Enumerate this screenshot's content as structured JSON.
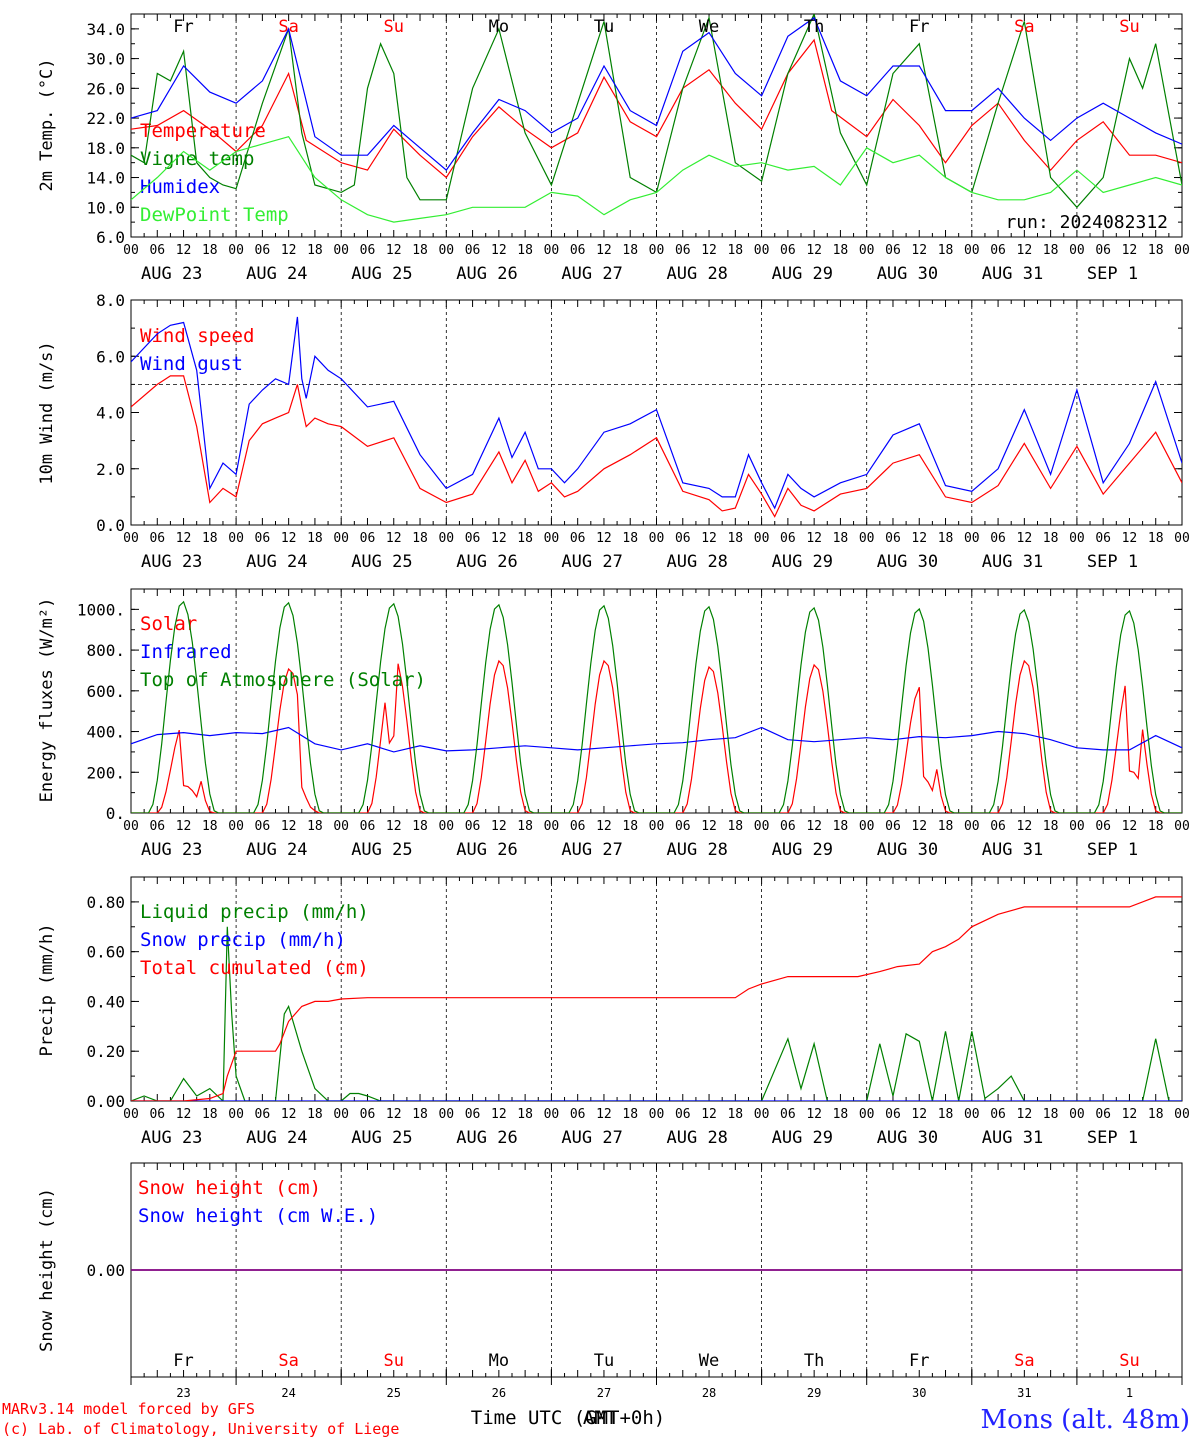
{
  "colors": {
    "red": "#ff0000",
    "green": "#008000",
    "blue": "#0000ff",
    "lightgreen": "#33ee33",
    "purple": "#800080",
    "sat_sun": "#ff0000",
    "weekday": "#000000",
    "station": "#2222ff"
  },
  "common": {
    "x_hour_labels": [
      "00",
      "06",
      "12",
      "18"
    ],
    "final_hour_label": "00",
    "dates": [
      "AUG 23",
      "AUG 24",
      "AUG 25",
      "AUG 26",
      "AUG 27",
      "AUG 28",
      "AUG 29",
      "AUG 30",
      "AUG 31",
      "SEP  1"
    ],
    "days_of_week": [
      "Fr",
      "Sa",
      "Su",
      "Mo",
      "Tu",
      "We",
      "Th",
      "Fr",
      "Sa",
      "Su"
    ],
    "weekend_flags": [
      false,
      true,
      true,
      false,
      false,
      false,
      false,
      false,
      true,
      true
    ],
    "day_numbers": [
      "23",
      "24",
      "25",
      "26",
      "27",
      "28",
      "29",
      "30",
      "31",
      "1"
    ],
    "x_axis_title": "Time UTC (GMT+0h)",
    "x_axis_title_overlay": "AMT",
    "run_label": "run: 2024082312",
    "footer_line1": "MARv3.14 model forced by GFS",
    "footer_line2": "(c) Lab. of Climatology, University of Liege",
    "station": "Mons (alt. 48m)"
  },
  "chart_data": [
    {
      "type": "line",
      "ylabel": "2m Temp. (°C)",
      "ylim": [
        6.0,
        36.0
      ],
      "yticks": [
        "6.0",
        "10.0",
        "14.0",
        "18.0",
        "22.0",
        "26.0",
        "30.0",
        "34.0"
      ],
      "ytick_values": [
        6,
        10,
        14,
        18,
        22,
        26,
        30,
        34
      ],
      "x_unit": "hours since AUG 23 00 UTC",
      "series": [
        {
          "name": "Temperature",
          "color": "red",
          "x": [
            0,
            6,
            12,
            18,
            24,
            30,
            36,
            40,
            48,
            54,
            60,
            66,
            72,
            78,
            84,
            90,
            96,
            102,
            108,
            114,
            120,
            126,
            132,
            138,
            144,
            150,
            156,
            160,
            168,
            174,
            180,
            186,
            192,
            198,
            204,
            210,
            216,
            222,
            228,
            234,
            240
          ],
          "values": [
            20.5,
            21,
            23,
            20.5,
            17.5,
            21,
            28,
            19,
            16,
            15,
            20.5,
            17,
            14,
            19.5,
            23.5,
            20.5,
            18,
            20,
            27.5,
            21.5,
            19.5,
            26,
            28.5,
            24,
            20.5,
            28,
            32.5,
            23,
            19.5,
            24.5,
            21,
            16,
            21,
            24,
            19,
            15,
            19,
            21.5,
            17,
            17,
            16
          ]
        },
        {
          "name": "Vigne temp",
          "color": "green",
          "x": [
            0,
            3,
            6,
            9,
            12,
            15,
            18,
            21,
            24,
            30,
            36,
            39,
            42,
            48,
            51,
            54,
            57,
            60,
            63,
            66,
            72,
            78,
            84,
            90,
            96,
            102,
            108,
            114,
            120,
            126,
            132,
            138,
            144,
            150,
            156,
            162,
            168,
            174,
            180,
            186,
            192,
            198,
            204,
            210,
            216,
            222,
            228,
            231,
            234,
            240
          ],
          "values": [
            17,
            16,
            28,
            27,
            31,
            16,
            14,
            13,
            12.5,
            24,
            34,
            20,
            13,
            12,
            13,
            26,
            32,
            28,
            14,
            11,
            11,
            26,
            34,
            20,
            13,
            24,
            35,
            14,
            12,
            26,
            35.5,
            16,
            13.5,
            28,
            36,
            20,
            13,
            28,
            32,
            14,
            12,
            24,
            35,
            14,
            10,
            14,
            30,
            26,
            32,
            13
          ]
        },
        {
          "name": "Humidex",
          "color": "blue",
          "x": [
            0,
            6,
            12,
            18,
            24,
            30,
            36,
            42,
            48,
            54,
            60,
            66,
            72,
            78,
            84,
            90,
            96,
            102,
            108,
            114,
            120,
            126,
            132,
            138,
            144,
            150,
            156,
            162,
            168,
            174,
            180,
            186,
            192,
            198,
            204,
            210,
            216,
            222,
            228,
            234,
            240
          ],
          "values": [
            22,
            23,
            29,
            25.5,
            24,
            27,
            34,
            19.5,
            17,
            17,
            21,
            18,
            15,
            20,
            24.5,
            23,
            20,
            22,
            29,
            23,
            21,
            31,
            33.5,
            28,
            25,
            33,
            35.5,
            27,
            25,
            29,
            29,
            23,
            23,
            26,
            22,
            19,
            22,
            24,
            22,
            20,
            18.5
          ]
        },
        {
          "name": "DewPoint Temp",
          "color": "lightgreen",
          "x": [
            0,
            6,
            12,
            18,
            24,
            30,
            36,
            42,
            48,
            54,
            60,
            66,
            72,
            78,
            84,
            90,
            96,
            102,
            108,
            114,
            120,
            126,
            132,
            138,
            144,
            150,
            156,
            162,
            168,
            174,
            180,
            186,
            192,
            198,
            204,
            210,
            216,
            222,
            228,
            234,
            240
          ],
          "values": [
            11,
            14,
            17.5,
            15,
            17.5,
            18.5,
            19.5,
            14,
            11,
            9,
            8,
            8.5,
            9,
            10,
            10,
            10,
            12,
            11.5,
            9,
            11,
            12,
            15,
            17,
            15.5,
            16,
            15,
            15.5,
            13,
            18,
            16,
            17,
            14,
            12,
            11,
            11,
            12,
            15,
            12,
            13,
            14,
            13
          ]
        }
      ],
      "annotations": [
        "run: 2024082312"
      ]
    },
    {
      "type": "line",
      "ylabel": "10m Wind (m/s)",
      "ylim": [
        0.0,
        8.0
      ],
      "yticks": [
        "0.0",
        "2.0",
        "4.0",
        "6.0",
        "8.0"
      ],
      "ytick_values": [
        0,
        2,
        4,
        6,
        8
      ],
      "reference_line": 5.0,
      "series": [
        {
          "name": "Wind speed",
          "color": "red",
          "x": [
            0,
            6,
            9,
            12,
            15,
            18,
            21,
            24,
            27,
            30,
            33,
            36,
            38,
            39,
            40,
            42,
            45,
            48,
            54,
            60,
            66,
            72,
            78,
            84,
            87,
            90,
            93,
            96,
            99,
            102,
            108,
            114,
            120,
            126,
            132,
            135,
            138,
            141,
            144,
            147,
            150,
            153,
            156,
            162,
            168,
            174,
            180,
            186,
            192,
            198,
            204,
            210,
            216,
            222,
            228,
            234,
            240
          ],
          "values": [
            4.2,
            5,
            5.3,
            5.3,
            3.5,
            0.8,
            1.3,
            1,
            3,
            3.6,
            3.8,
            4,
            5,
            4.2,
            3.5,
            3.8,
            3.6,
            3.5,
            2.8,
            3.1,
            1.3,
            0.8,
            1.1,
            2.6,
            1.5,
            2.3,
            1.2,
            1.5,
            1.0,
            1.2,
            2,
            2.5,
            3.1,
            1.2,
            0.9,
            0.5,
            0.6,
            1.8,
            1.1,
            0.3,
            1.3,
            0.7,
            0.5,
            1.1,
            1.3,
            2.2,
            2.5,
            1.0,
            0.8,
            1.4,
            2.9,
            1.3,
            2.8,
            1.1,
            2.2,
            3.3,
            1.5
          ]
        },
        {
          "name": "Wind gust",
          "color": "blue",
          "x": [
            0,
            6,
            9,
            12,
            15,
            18,
            21,
            24,
            27,
            30,
            33,
            36,
            38,
            39,
            40,
            42,
            45,
            48,
            54,
            60,
            66,
            72,
            78,
            84,
            87,
            90,
            93,
            96,
            99,
            102,
            108,
            114,
            120,
            126,
            132,
            135,
            138,
            141,
            144,
            147,
            150,
            153,
            156,
            162,
            168,
            174,
            180,
            186,
            192,
            198,
            204,
            210,
            216,
            222,
            228,
            234,
            240
          ],
          "values": [
            5.8,
            6.8,
            7.1,
            7.2,
            5.5,
            1.3,
            2.2,
            1.8,
            4.3,
            4.8,
            5.2,
            5,
            7.4,
            5.2,
            4.5,
            6,
            5.5,
            5.2,
            4.2,
            4.4,
            2.5,
            1.3,
            1.8,
            3.8,
            2.4,
            3.3,
            2,
            2,
            1.5,
            2,
            3.3,
            3.6,
            4.1,
            1.5,
            1.3,
            1,
            1,
            2.5,
            1.5,
            0.6,
            1.8,
            1.3,
            1,
            1.5,
            1.8,
            3.2,
            3.6,
            1.4,
            1.2,
            2.0,
            4.1,
            1.8,
            4.8,
            1.5,
            2.9,
            5.1,
            2.2
          ]
        }
      ]
    },
    {
      "type": "line",
      "ylabel": "Energy fluxes (W/m²)",
      "ylim": [
        0,
        1100
      ],
      "yticks": [
        "0.",
        "200.",
        "400.",
        "600.",
        "800.",
        "1000."
      ],
      "ytick_values": [
        0,
        200,
        400,
        600,
        800,
        1000
      ],
      "series": [
        {
          "name": "Solar",
          "color": "red",
          "peaks": [
            450,
            710,
            760,
            750,
            750,
            720,
            730,
            620,
            750,
            690
          ]
        },
        {
          "name": "Infrared",
          "color": "blue",
          "x": [
            0,
            6,
            12,
            18,
            24,
            30,
            36,
            42,
            48,
            54,
            60,
            66,
            72,
            78,
            84,
            90,
            96,
            102,
            108,
            114,
            120,
            126,
            132,
            138,
            144,
            150,
            156,
            162,
            168,
            174,
            180,
            186,
            192,
            198,
            204,
            210,
            216,
            222,
            228,
            234,
            240
          ],
          "values": [
            340,
            385,
            395,
            380,
            395,
            390,
            420,
            340,
            310,
            340,
            300,
            330,
            305,
            310,
            320,
            330,
            320,
            310,
            320,
            330,
            340,
            345,
            360,
            370,
            420,
            360,
            350,
            360,
            370,
            360,
            375,
            370,
            380,
            400,
            390,
            360,
            320,
            310,
            310,
            380,
            320
          ]
        },
        {
          "name": "Top of Atmosphere (Solar)",
          "color": "green",
          "peaks": [
            1040,
            1035,
            1030,
            1025,
            1020,
            1015,
            1010,
            1005,
            1000,
            995
          ]
        }
      ]
    },
    {
      "type": "line",
      "ylabel": "Precip (mm/h)",
      "ylim": [
        0.0,
        0.9
      ],
      "yticks": [
        "0.00",
        "0.20",
        "0.40",
        "0.60",
        "0.80"
      ],
      "ytick_values": [
        0,
        0.2,
        0.4,
        0.6,
        0.8
      ],
      "series": [
        {
          "name": "Liquid precip (mm/h)",
          "color": "green",
          "x": [
            0,
            3,
            6,
            9,
            12,
            15,
            18,
            21,
            22,
            23,
            24,
            26,
            27,
            30,
            33,
            35,
            36,
            39,
            42,
            45,
            48,
            50,
            52,
            54,
            57,
            60,
            66,
            72,
            108,
            111,
            114,
            117,
            120,
            123,
            126,
            132,
            144,
            150,
            153,
            156,
            159,
            162,
            168,
            171,
            174,
            177,
            180,
            183,
            186,
            189,
            192,
            195,
            198,
            201,
            204,
            210,
            228,
            231,
            234,
            237,
            240
          ],
          "values": [
            0,
            0.02,
            0,
            0,
            0.09,
            0.02,
            0.05,
            0,
            0.7,
            0.35,
            0.1,
            0,
            0,
            0,
            0,
            0.35,
            0.38,
            0.2,
            0.05,
            0,
            0,
            0.03,
            0.03,
            0.02,
            0,
            0,
            0,
            0,
            0,
            0,
            0,
            0,
            0,
            0,
            0,
            0,
            0,
            0.25,
            0.05,
            0.23,
            0,
            0,
            0,
            0.23,
            0.02,
            0.27,
            0.24,
            0,
            0.28,
            0,
            0.28,
            0.01,
            0.05,
            0.1,
            0,
            0,
            0,
            0,
            0.25,
            0,
            0
          ]
        },
        {
          "name": "Snow precip (mm/h)",
          "color": "blue",
          "constant": 0.0
        },
        {
          "name": "Total cumulated (cm)",
          "color": "red",
          "x": [
            0,
            12,
            18,
            21,
            22,
            24,
            27,
            33,
            34,
            36,
            39,
            42,
            45,
            48,
            54,
            60,
            66,
            72,
            84,
            96,
            108,
            120,
            132,
            138,
            141,
            144,
            150,
            156,
            162,
            166,
            171,
            175,
            180,
            183,
            186,
            189,
            192,
            198,
            204,
            210,
            216,
            222,
            228,
            234,
            240
          ],
          "values": [
            0,
            0,
            0.01,
            0.03,
            0.1,
            0.2,
            0.2,
            0.2,
            0.23,
            0.32,
            0.38,
            0.4,
            0.4,
            0.41,
            0.415,
            0.415,
            0.415,
            0.415,
            0.415,
            0.415,
            0.415,
            0.415,
            0.415,
            0.415,
            0.45,
            0.47,
            0.5,
            0.5,
            0.5,
            0.5,
            0.52,
            0.54,
            0.55,
            0.6,
            0.62,
            0.65,
            0.7,
            0.75,
            0.78,
            0.78,
            0.78,
            0.78,
            0.78,
            0.82,
            0.82
          ]
        }
      ]
    },
    {
      "type": "line",
      "ylabel": "Snow height (cm)",
      "ylim": [
        -1,
        1
      ],
      "yticks": [
        "0.00"
      ],
      "ytick_values": [
        0
      ],
      "series": [
        {
          "name": "Snow height (cm)",
          "color": "red",
          "constant": 0.0
        },
        {
          "name": "Snow height (cm W.E.)",
          "color": "blue",
          "constant": 0.0
        }
      ]
    }
  ]
}
